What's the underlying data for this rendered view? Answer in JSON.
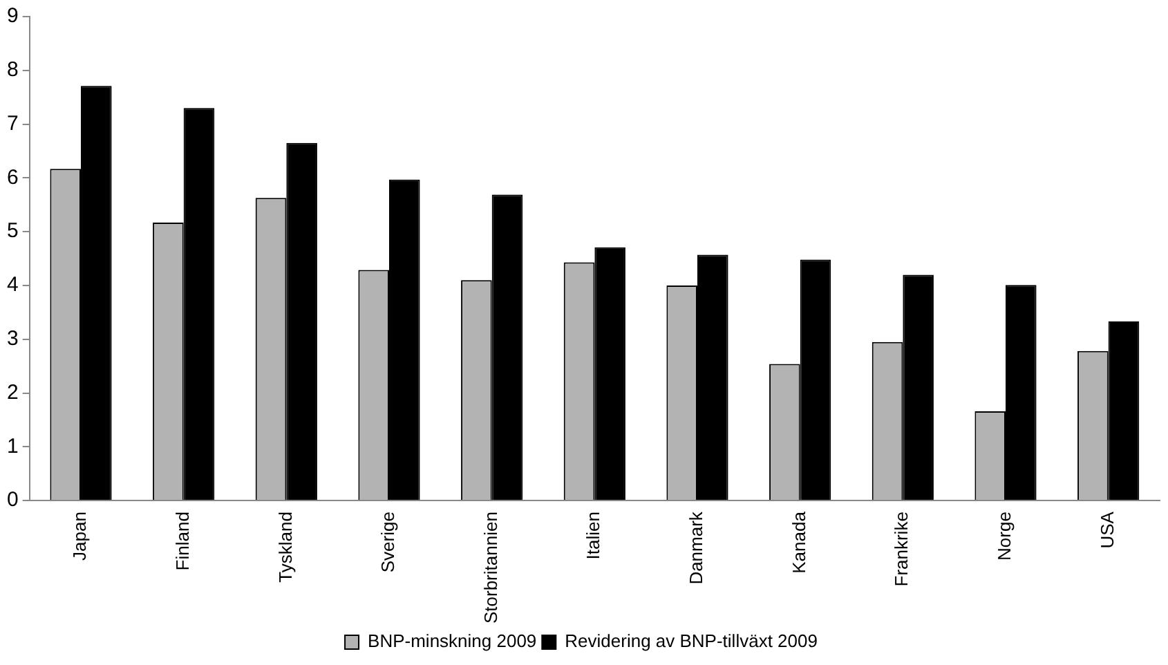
{
  "chart_data": {
    "type": "bar",
    "categories": [
      "Japan",
      "Finland",
      "Tyskland",
      "Sverige",
      "Storbritannien",
      "Italien",
      "Danmark",
      "Kanada",
      "Frankrike",
      "Norge",
      "USA"
    ],
    "series": [
      {
        "name": "BNP-minskning 2009",
        "color": "#b3b3b3",
        "values": [
          6.17,
          5.17,
          5.63,
          4.29,
          4.1,
          4.43,
          4.0,
          2.54,
          2.95,
          1.66,
          2.78
        ]
      },
      {
        "name": "Revidering av BNP-tillväxt 2009",
        "color": "#000000",
        "values": [
          7.71,
          7.3,
          6.65,
          5.97,
          5.69,
          4.71,
          4.57,
          4.48,
          4.2,
          4.01,
          3.33
        ]
      }
    ],
    "ylim": [
      0,
      9
    ],
    "yticks": [
      0,
      1,
      2,
      3,
      4,
      5,
      6,
      7,
      8,
      9
    ],
    "grid": false,
    "legend": "bottom"
  }
}
